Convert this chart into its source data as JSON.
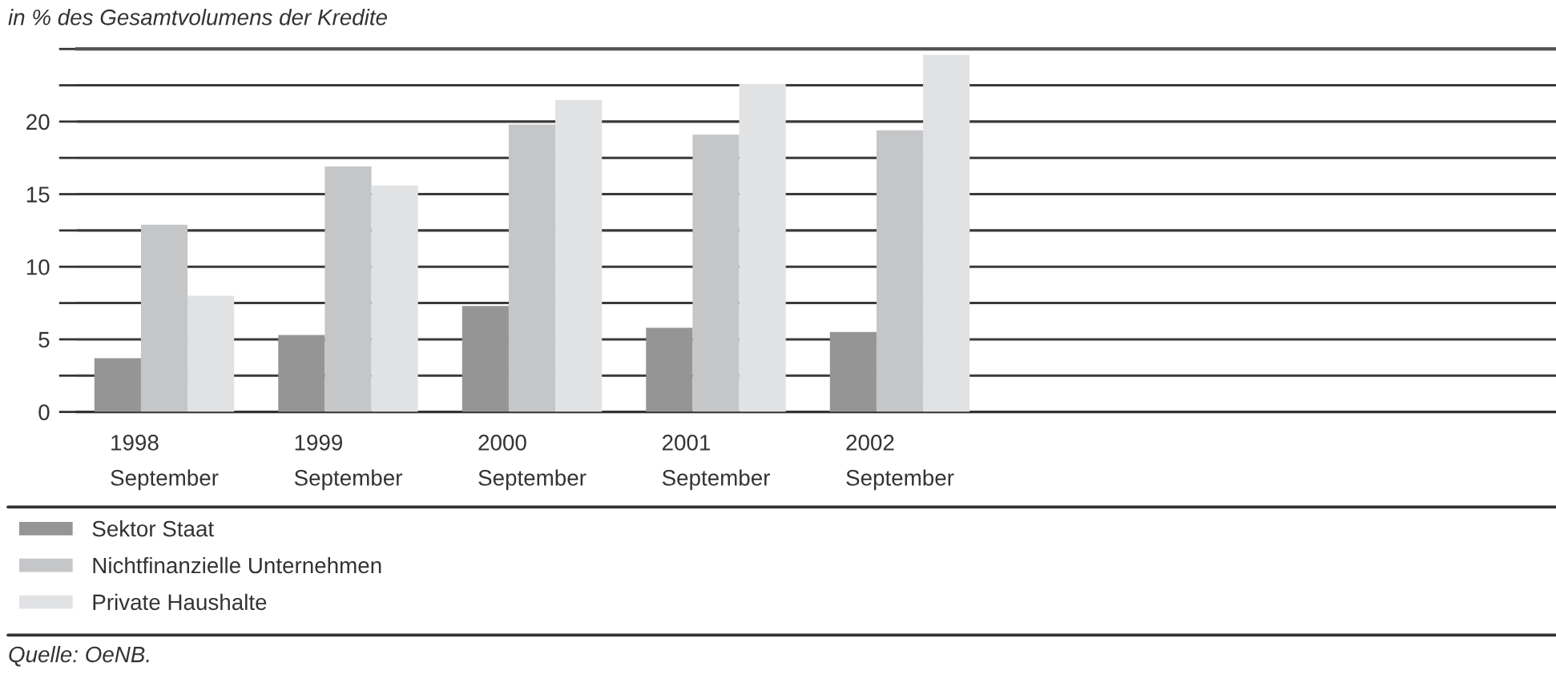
{
  "chart_data": {
    "type": "bar",
    "ylabel": "in % des Gesamtvolumens der Kredite",
    "categories": [
      "1998\nSeptember",
      "1999\nSeptember",
      "2000\nSeptember",
      "2001\nSeptember",
      "2002\nSeptember"
    ],
    "series": [
      {
        "name": "Sektor Staat",
        "color": "#959595",
        "values": [
          3.7,
          5.3,
          7.3,
          5.8,
          5.5
        ]
      },
      {
        "name": "Nichtfinanzielle Unternehmen",
        "color": "#c5c6c8",
        "values": [
          12.9,
          16.9,
          19.8,
          19.1,
          19.4
        ]
      },
      {
        "name": "Private Haushalte",
        "color": "#e1e2e3",
        "values": [
          8.0,
          15.6,
          21.5,
          22.6,
          24.6
        ]
      }
    ],
    "ylim": [
      0,
      25
    ],
    "yticks": [
      0,
      {
        "value": 2.5,
        "label": null
      },
      5,
      {
        "value": 7.5,
        "label": null
      },
      10,
      {
        "value": 12.5,
        "label": null
      },
      15,
      {
        "value": 17.5,
        "label": null
      },
      20,
      {
        "value": 22.5,
        "label": null
      },
      {
        "value": 25,
        "label": null
      }
    ],
    "grid": "y",
    "legend": "bottom",
    "annotations": [
      "Quelle: OeNB."
    ]
  }
}
